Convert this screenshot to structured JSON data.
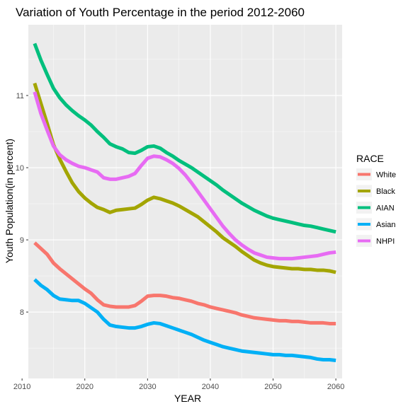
{
  "chart_data": {
    "type": "line",
    "title": "Variation of Youth Percentage in the period 2012-2060",
    "xlabel": "YEAR",
    "ylabel": "Youth Population(in percent)",
    "xlim": [
      2011.0,
      2061.0
    ],
    "ylim": [
      7.08,
      11.98
    ],
    "xticks": [
      2010,
      2020,
      2030,
      2040,
      2050,
      2060
    ],
    "yticks": [
      8,
      9,
      10,
      11
    ],
    "grid": true,
    "legend": {
      "title": "RACE",
      "position": "right"
    },
    "x": [
      2012,
      2013,
      2014,
      2015,
      2016,
      2017,
      2018,
      2019,
      2020,
      2021,
      2022,
      2023,
      2024,
      2025,
      2026,
      2027,
      2028,
      2029,
      2030,
      2031,
      2032,
      2033,
      2034,
      2035,
      2036,
      2037,
      2038,
      2039,
      2040,
      2041,
      2042,
      2043,
      2044,
      2045,
      2046,
      2047,
      2048,
      2049,
      2050,
      2051,
      2052,
      2053,
      2054,
      2055,
      2056,
      2057,
      2058,
      2059,
      2060
    ],
    "series": [
      {
        "name": "White",
        "color": "#F8766D",
        "values": [
          8.96,
          8.88,
          8.8,
          8.68,
          8.6,
          8.53,
          8.46,
          8.39,
          8.32,
          8.26,
          8.17,
          8.1,
          8.08,
          8.07,
          8.07,
          8.07,
          8.09,
          8.15,
          8.22,
          8.23,
          8.23,
          8.22,
          8.2,
          8.19,
          8.17,
          8.15,
          8.12,
          8.1,
          8.07,
          8.05,
          8.03,
          8.01,
          7.99,
          7.96,
          7.94,
          7.92,
          7.91,
          7.9,
          7.89,
          7.88,
          7.88,
          7.87,
          7.87,
          7.86,
          7.85,
          7.85,
          7.85,
          7.84,
          7.84
        ]
      },
      {
        "name": "Black",
        "color": "#A3A500",
        "values": [
          11.17,
          10.89,
          10.61,
          10.32,
          10.12,
          9.95,
          9.79,
          9.67,
          9.58,
          9.51,
          9.45,
          9.42,
          9.38,
          9.41,
          9.42,
          9.43,
          9.44,
          9.49,
          9.55,
          9.59,
          9.57,
          9.54,
          9.51,
          9.47,
          9.42,
          9.37,
          9.32,
          9.25,
          9.18,
          9.11,
          9.03,
          8.97,
          8.91,
          8.84,
          8.78,
          8.72,
          8.68,
          8.65,
          8.63,
          8.62,
          8.61,
          8.6,
          8.6,
          8.59,
          8.59,
          8.58,
          8.58,
          8.57,
          8.55
        ]
      },
      {
        "name": "AIAN",
        "color": "#00BF7D",
        "values": [
          11.72,
          11.49,
          11.29,
          11.1,
          10.97,
          10.87,
          10.79,
          10.72,
          10.66,
          10.59,
          10.5,
          10.42,
          10.33,
          10.29,
          10.26,
          10.21,
          10.2,
          10.24,
          10.29,
          10.3,
          10.27,
          10.21,
          10.16,
          10.1,
          10.05,
          10.0,
          9.94,
          9.88,
          9.82,
          9.76,
          9.69,
          9.63,
          9.57,
          9.51,
          9.46,
          9.41,
          9.37,
          9.33,
          9.3,
          9.28,
          9.26,
          9.24,
          9.22,
          9.2,
          9.19,
          9.17,
          9.15,
          9.13,
          9.11
        ]
      },
      {
        "name": "Asian",
        "color": "#00B0F6",
        "values": [
          8.45,
          8.37,
          8.31,
          8.23,
          8.18,
          8.17,
          8.16,
          8.16,
          8.12,
          8.06,
          8.0,
          7.9,
          7.82,
          7.8,
          7.79,
          7.78,
          7.78,
          7.8,
          7.83,
          7.85,
          7.84,
          7.81,
          7.78,
          7.75,
          7.72,
          7.69,
          7.65,
          7.61,
          7.58,
          7.55,
          7.52,
          7.5,
          7.48,
          7.46,
          7.45,
          7.44,
          7.43,
          7.42,
          7.41,
          7.41,
          7.4,
          7.4,
          7.39,
          7.38,
          7.37,
          7.35,
          7.34,
          7.34,
          7.33
        ]
      },
      {
        "name": "NHPI",
        "color": "#E76BF3",
        "values": [
          11.05,
          10.75,
          10.52,
          10.3,
          10.18,
          10.11,
          10.06,
          10.02,
          10.0,
          9.97,
          9.94,
          9.86,
          9.84,
          9.84,
          9.86,
          9.88,
          9.92,
          10.03,
          10.13,
          10.16,
          10.15,
          10.11,
          10.06,
          9.99,
          9.9,
          9.79,
          9.67,
          9.55,
          9.43,
          9.31,
          9.19,
          9.09,
          9.0,
          8.93,
          8.87,
          8.82,
          8.79,
          8.76,
          8.75,
          8.74,
          8.74,
          8.74,
          8.75,
          8.76,
          8.77,
          8.78,
          8.8,
          8.82,
          8.83
        ]
      }
    ]
  }
}
